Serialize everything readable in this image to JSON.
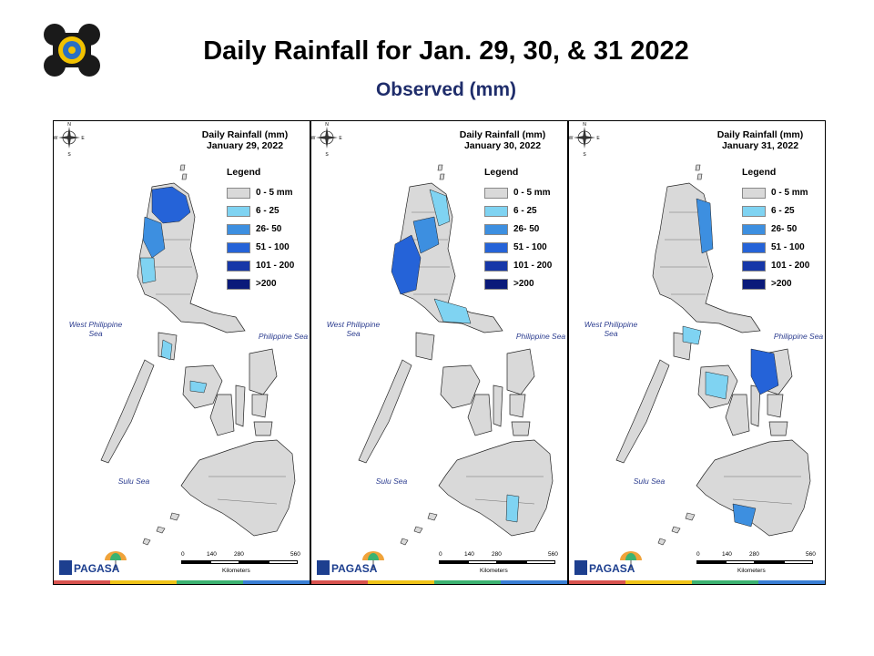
{
  "header": {
    "title": "Daily Rainfall for Jan. 29, 30, & 31 2022",
    "subtitle": "Observed (mm)"
  },
  "legend": {
    "title": "Legend",
    "classes": [
      {
        "label": "0 - 5 mm",
        "color": "#d9d9d9"
      },
      {
        "label": "6 - 25",
        "color": "#7fd3f2"
      },
      {
        "label": "26- 50",
        "color": "#3d8fe0"
      },
      {
        "label": "51 - 100",
        "color": "#2563d8"
      },
      {
        "label": "101 - 200",
        "color": "#1637a8"
      },
      {
        "label": ">200",
        "color": "#0a1a7a"
      }
    ]
  },
  "seas": {
    "west": "West Philippine Sea",
    "east": "Philippine Sea",
    "sulu": "Sulu Sea"
  },
  "scale": {
    "ticks": [
      "0",
      "140",
      "280",
      "560"
    ],
    "units": "Kilometers"
  },
  "compass": {
    "n": "N",
    "s": "S",
    "e": "E",
    "w": "W"
  },
  "brand": {
    "name": "PAGASA"
  },
  "panels": [
    {
      "title_line1": "Daily Rainfall (mm)",
      "title_line2": "January 29, 2022"
    },
    {
      "title_line1": "Daily Rainfall (mm)",
      "title_line2": "January 30, 2022"
    },
    {
      "title_line1": "Daily Rainfall (mm)",
      "title_line2": "January 31, 2022"
    }
  ]
}
